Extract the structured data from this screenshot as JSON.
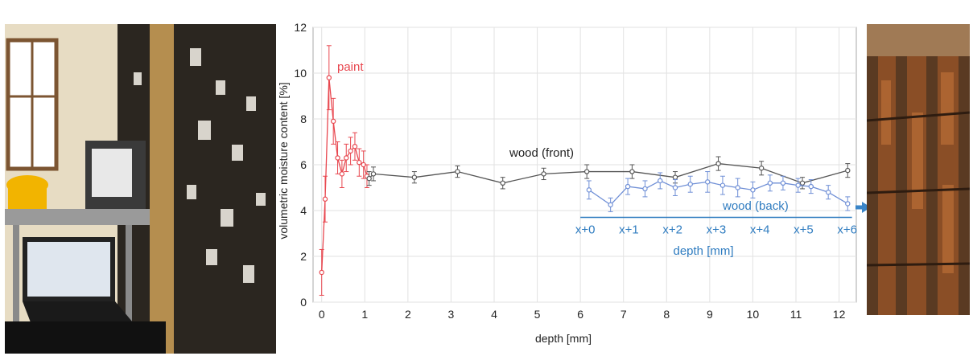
{
  "chart_data": {
    "type": "line",
    "xlabel": "depth [mm]",
    "ylabel": "volumetric moisture content [%]",
    "xlim": [
      -0.2,
      12.4
    ],
    "ylim": [
      0,
      12
    ],
    "xticks": [
      0,
      1,
      2,
      3,
      4,
      5,
      6,
      7,
      8,
      9,
      10,
      11,
      12
    ],
    "yticks": [
      0,
      2,
      4,
      6,
      8,
      10,
      12
    ],
    "grid": true,
    "series": [
      {
        "name": "paint",
        "color": "#e8474f",
        "x": [
          0.0,
          0.08,
          0.17,
          0.27,
          0.37,
          0.47,
          0.57,
          0.67,
          0.77,
          0.87,
          0.97,
          1.05
        ],
        "y": [
          1.3,
          4.5,
          9.8,
          7.9,
          6.3,
          5.6,
          6.3,
          6.6,
          6.8,
          6.1,
          6.0,
          5.5
        ],
        "err": [
          1.0,
          1.0,
          1.4,
          1.0,
          0.7,
          0.6,
          0.6,
          0.6,
          0.6,
          0.6,
          0.6,
          0.5
        ]
      },
      {
        "name": "wood (front)",
        "color": "#555555",
        "x": [
          1.1,
          1.2,
          2.15,
          3.15,
          4.2,
          5.15,
          6.15,
          7.2,
          8.2,
          9.2,
          10.2,
          11.15,
          12.2
        ],
        "y": [
          5.4,
          5.6,
          5.45,
          5.7,
          5.2,
          5.6,
          5.7,
          5.7,
          5.45,
          6.05,
          5.85,
          5.2,
          5.75
        ],
        "err": [
          0.3,
          0.3,
          0.25,
          0.25,
          0.25,
          0.25,
          0.3,
          0.3,
          0.25,
          0.3,
          0.3,
          0.25,
          0.3
        ]
      },
      {
        "name": "wood (back)",
        "color": "#6f8fd6",
        "x": [
          6.2,
          6.7,
          7.1,
          7.5,
          7.85,
          8.2,
          8.55,
          8.95,
          9.3,
          9.65,
          10.0,
          10.4,
          10.7,
          11.05,
          11.35,
          11.75,
          12.2
        ],
        "y": [
          4.9,
          4.25,
          5.05,
          4.95,
          5.3,
          5.0,
          5.15,
          5.25,
          5.1,
          5.0,
          4.9,
          5.2,
          5.2,
          5.1,
          5.05,
          4.8,
          4.3
        ],
        "err": [
          0.4,
          0.3,
          0.35,
          0.35,
          0.35,
          0.35,
          0.35,
          0.45,
          0.4,
          0.4,
          0.35,
          0.35,
          0.3,
          0.3,
          0.3,
          0.3,
          0.3
        ]
      }
    ],
    "secondary_axis": {
      "label": "depth [mm]",
      "color": "#2f7cc0",
      "ticks": [
        "x+0",
        "x+1",
        "x+2",
        "x+3",
        "x+4",
        "x+5",
        "x+6"
      ],
      "range_in_primary_units": [
        6.0,
        12.3
      ]
    }
  },
  "photos": {
    "left": "measurement-setup-photo",
    "right": "wooden-panel-back-photo",
    "arrow_color": "#3a85c8"
  }
}
